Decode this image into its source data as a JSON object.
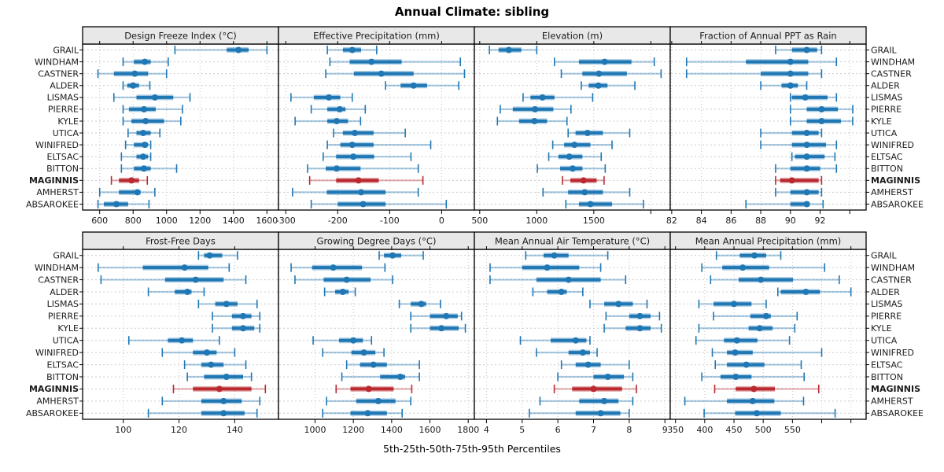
{
  "title": "Annual Climate: sibling",
  "caption": "5th-25th-50th-75th-95th Percentiles",
  "colors": {
    "blue": "#1f77b4",
    "blue_light": "rgba(31,119,180,0.38)",
    "red": "#b9292f",
    "red_light": "rgba(185,41,47,0.38)",
    "grid": "#c4c4c4",
    "row_guide": "#cccccc",
    "header_bg": "#e8e8e8",
    "border": "#000000",
    "text": "#1a1a1a"
  },
  "chart_data": {
    "type": "scatter",
    "subtype": "trellis-percentile-interval-dotplot",
    "percentile_labels": [
      "5th",
      "25th",
      "50th",
      "75th",
      "95th"
    ],
    "stations": [
      "GRAIL",
      "WINDHAM",
      "CASTNER",
      "ALDER",
      "LISMAS",
      "PIERRE",
      "KYLE",
      "UTICA",
      "WINIFRED",
      "ELTSAC",
      "BITTON",
      "MAGINNIS",
      "AMHERST",
      "ABSAROKEE"
    ],
    "highlight": "MAGINNIS",
    "panels": [
      {
        "title": "Design Freeze Index (°C)",
        "domain": [
          498,
          1669
        ],
        "ticks": [
          [
            600,
            "600"
          ],
          [
            800,
            "800"
          ],
          [
            1000,
            "1000"
          ],
          [
            1200,
            "1200"
          ],
          [
            1400,
            "1400"
          ],
          [
            1600,
            "1600"
          ]
        ],
        "values": [
          [
            1050,
            1360,
            1430,
            1490,
            1600
          ],
          [
            740,
            805,
            870,
            905,
            1010
          ],
          [
            590,
            685,
            810,
            890,
            1000
          ],
          [
            740,
            765,
            800,
            835,
            900
          ],
          [
            685,
            820,
            930,
            1040,
            1140
          ],
          [
            740,
            775,
            865,
            935,
            1095
          ],
          [
            740,
            790,
            875,
            985,
            1085
          ],
          [
            770,
            820,
            860,
            905,
            960
          ],
          [
            755,
            805,
            870,
            890,
            905
          ],
          [
            730,
            820,
            860,
            890,
            905
          ],
          [
            730,
            805,
            865,
            905,
            1060
          ],
          [
            670,
            715,
            790,
            835,
            885
          ],
          [
            600,
            715,
            825,
            845,
            930
          ],
          [
            590,
            625,
            700,
            770,
            895
          ]
        ]
      },
      {
        "title": "Effective Precipitation (mm)",
        "domain": [
          -314,
          63
        ],
        "ticks": [
          [
            -300,
            "-300"
          ],
          [
            -200,
            "-200"
          ],
          [
            -100,
            "-100"
          ],
          [
            0,
            "0"
          ]
        ],
        "values": [
          [
            -220,
            -190,
            -172,
            -155,
            -125
          ],
          [
            -215,
            -177,
            -135,
            -77,
            36
          ],
          [
            -223,
            -169,
            -116,
            -54,
            44
          ],
          [
            -108,
            -79,
            -54,
            -28,
            33
          ],
          [
            -290,
            -246,
            -217,
            -195,
            -172
          ],
          [
            -251,
            -220,
            -196,
            -185,
            -147
          ],
          [
            -282,
            -220,
            -202,
            -180,
            -156
          ],
          [
            -208,
            -190,
            -167,
            -131,
            -70
          ],
          [
            -220,
            -195,
            -172,
            -131,
            -21
          ],
          [
            -228,
            -203,
            -170,
            -130,
            -59
          ],
          [
            -258,
            -223,
            -202,
            -156,
            -45
          ],
          [
            -254,
            -203,
            -160,
            -121,
            -36
          ],
          [
            -287,
            -221,
            -155,
            -108,
            -45
          ],
          [
            -251,
            -200,
            -151,
            -108,
            9
          ]
        ]
      },
      {
        "title": "Elevation (m)",
        "domain": [
          453,
          2170
        ],
        "ticks": [
          [
            500,
            "500"
          ],
          [
            1000,
            "1000"
          ],
          [
            1500,
            "1500"
          ],
          [
            2000,
            ""
          ]
        ],
        "values": [
          [
            585,
            665,
            755,
            865,
            1000
          ],
          [
            1155,
            1370,
            1595,
            1830,
            2030
          ],
          [
            1215,
            1400,
            1545,
            1790,
            2090
          ],
          [
            1390,
            1455,
            1540,
            1620,
            1860
          ],
          [
            880,
            945,
            1050,
            1155,
            1490
          ],
          [
            680,
            790,
            985,
            1145,
            1300
          ],
          [
            655,
            845,
            980,
            1090,
            1265
          ],
          [
            1275,
            1340,
            1445,
            1580,
            1815
          ],
          [
            1140,
            1240,
            1330,
            1470,
            1660
          ],
          [
            1105,
            1190,
            1285,
            1400,
            1565
          ],
          [
            1005,
            1205,
            1315,
            1400,
            1600
          ],
          [
            1225,
            1295,
            1410,
            1525,
            1590
          ],
          [
            1055,
            1275,
            1420,
            1580,
            1815
          ],
          [
            1255,
            1370,
            1470,
            1660,
            1935
          ]
        ]
      },
      {
        "title": "Fraction of Annual PPT as Rain",
        "domain": [
          81.9,
          95.1
        ],
        "ticks": [
          [
            82,
            "82"
          ],
          [
            84,
            "84"
          ],
          [
            86,
            "86"
          ],
          [
            88,
            "88"
          ],
          [
            90,
            "90"
          ],
          [
            92,
            "92"
          ],
          [
            94,
            ""
          ]
        ],
        "values": [
          [
            89.0,
            90.1,
            91.1,
            91.8,
            92.1
          ],
          [
            83.0,
            87.0,
            90.0,
            91.2,
            93.1
          ],
          [
            83.0,
            88.0,
            90.0,
            91.2,
            92.1
          ],
          [
            88.0,
            89.4,
            90.0,
            90.5,
            91.1
          ],
          [
            90.0,
            90.1,
            91.0,
            92.5,
            93.1
          ],
          [
            90.0,
            91.1,
            92.1,
            93.2,
            94.2
          ],
          [
            90.0,
            91.1,
            92.1,
            93.4,
            94.2
          ],
          [
            88.0,
            90.1,
            91.1,
            91.9,
            92.1
          ],
          [
            88.0,
            90.1,
            91.1,
            92.4,
            93.1
          ],
          [
            90.1,
            90.3,
            91.1,
            92.3,
            93.0
          ],
          [
            89.0,
            90.0,
            91.1,
            92.0,
            93.1
          ],
          [
            89.0,
            89.3,
            90.1,
            91.9,
            92.1
          ],
          [
            89.0,
            90.0,
            91.1,
            91.9,
            92.1
          ],
          [
            87.0,
            90.0,
            91.1,
            91.3,
            92.2
          ]
        ]
      },
      {
        "title": "Frost-Free Days",
        "domain": [
          85.4,
          155.7
        ],
        "ticks": [
          [
            100,
            "100"
          ],
          [
            120,
            "120"
          ],
          [
            140,
            "140"
          ]
        ],
        "values": [
          [
            127,
            129,
            131,
            135.5,
            141
          ],
          [
            91,
            107,
            122,
            130.5,
            138
          ],
          [
            92,
            115,
            126,
            136,
            144
          ],
          [
            109,
            118.5,
            123,
            124.5,
            129
          ],
          [
            127,
            133,
            137,
            141,
            148
          ],
          [
            132,
            139,
            143,
            146,
            149
          ],
          [
            132,
            139,
            143,
            147,
            149
          ],
          [
            102,
            116,
            121,
            125,
            134.5
          ],
          [
            114,
            125,
            130,
            133.5,
            140
          ],
          [
            122,
            128,
            131.5,
            136,
            144
          ],
          [
            123,
            129,
            137,
            143,
            146
          ],
          [
            118,
            125,
            134.5,
            146,
            151
          ],
          [
            114,
            128,
            136,
            142.5,
            149
          ],
          [
            109,
            128,
            136,
            143.5,
            148
          ]
        ]
      },
      {
        "title": "Growing Degree Days (°C)",
        "domain": [
          809,
          1832
        ],
        "ticks": [
          [
            1000,
            "1000"
          ],
          [
            1200,
            "1200"
          ],
          [
            1400,
            "1400"
          ],
          [
            1600,
            "1600"
          ],
          [
            1800,
            "1800"
          ]
        ],
        "values": [
          [
            1335,
            1360,
            1405,
            1450,
            1565
          ],
          [
            875,
            985,
            1095,
            1245,
            1365
          ],
          [
            895,
            1045,
            1165,
            1290,
            1405
          ],
          [
            1050,
            1105,
            1145,
            1175,
            1210
          ],
          [
            1440,
            1500,
            1555,
            1580,
            1655
          ],
          [
            1500,
            1600,
            1685,
            1745,
            1765
          ],
          [
            1500,
            1600,
            1660,
            1750,
            1785
          ],
          [
            990,
            1125,
            1200,
            1250,
            1295
          ],
          [
            1040,
            1190,
            1255,
            1315,
            1360
          ],
          [
            1165,
            1235,
            1305,
            1375,
            1545
          ],
          [
            1140,
            1340,
            1445,
            1470,
            1545
          ],
          [
            1110,
            1185,
            1280,
            1410,
            1505
          ],
          [
            1060,
            1215,
            1330,
            1420,
            1500
          ],
          [
            1040,
            1185,
            1275,
            1375,
            1455
          ]
        ]
      },
      {
        "title": "Mean Annual Air Temperature (°C)",
        "domain": [
          3.66,
          9.15
        ],
        "ticks": [
          [
            4,
            "4"
          ],
          [
            5,
            "5"
          ],
          [
            6,
            "6"
          ],
          [
            7,
            "7"
          ],
          [
            8,
            "8"
          ],
          [
            9,
            "9"
          ]
        ],
        "values": [
          [
            5.1,
            5.6,
            5.9,
            6.3,
            7.4
          ],
          [
            4.1,
            5.0,
            5.7,
            6.6,
            7.2
          ],
          [
            4.1,
            5.4,
            6.3,
            7.2,
            7.9
          ],
          [
            5.3,
            5.7,
            6.1,
            6.25,
            6.7
          ],
          [
            6.9,
            7.3,
            7.7,
            8.1,
            8.5
          ],
          [
            7.35,
            8.0,
            8.3,
            8.6,
            8.85
          ],
          [
            7.3,
            7.9,
            8.3,
            8.6,
            8.9
          ],
          [
            4.95,
            5.8,
            6.5,
            6.8,
            6.9
          ],
          [
            5.4,
            6.3,
            6.7,
            6.9,
            7.1
          ],
          [
            6.1,
            6.5,
            6.85,
            7.2,
            8.0
          ],
          [
            6.0,
            7.0,
            7.4,
            7.85,
            8.1
          ],
          [
            5.9,
            6.4,
            7.0,
            7.8,
            8.2
          ],
          [
            5.5,
            6.6,
            7.3,
            7.7,
            8.1
          ],
          [
            5.2,
            6.5,
            7.2,
            7.75,
            8.0
          ]
        ]
      },
      {
        "title": "Mean Annual Precipitation (mm)",
        "domain": [
          341,
          676
        ],
        "ticks": [
          [
            350,
            "350"
          ],
          [
            400,
            "400"
          ],
          [
            450,
            "450"
          ],
          [
            500,
            "500"
          ],
          [
            550,
            "550"
          ],
          [
            600,
            ""
          ],
          [
            650,
            ""
          ]
        ],
        "values": [
          [
            420,
            460,
            485,
            505,
            530
          ],
          [
            395,
            430,
            465,
            510,
            605
          ],
          [
            410,
            458,
            496,
            551,
            630
          ],
          [
            525,
            530,
            573,
            597,
            650
          ],
          [
            390,
            415,
            450,
            480,
            505
          ],
          [
            415,
            478,
            505,
            513,
            558
          ],
          [
            390,
            475,
            494,
            516,
            554
          ],
          [
            385,
            433,
            455,
            490,
            545
          ],
          [
            413,
            438,
            452,
            482,
            600
          ],
          [
            418,
            438,
            471,
            502,
            565
          ],
          [
            395,
            427,
            453,
            480,
            570
          ],
          [
            417,
            453,
            484,
            520,
            595
          ],
          [
            366,
            438,
            482,
            519,
            569
          ],
          [
            399,
            452,
            489,
            530,
            623
          ]
        ]
      }
    ]
  }
}
